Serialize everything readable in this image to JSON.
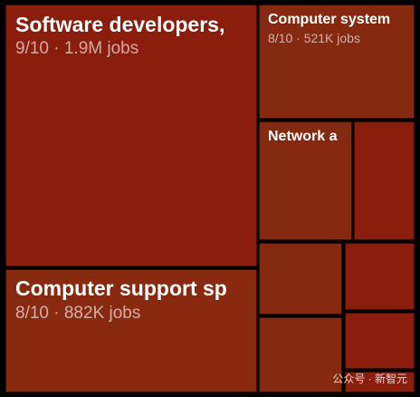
{
  "tiles": [
    {
      "label": "Software developers,",
      "detail": "9/10 · 1.9M jobs"
    },
    {
      "label": "Computer support sp",
      "detail": "8/10 · 882K jobs"
    },
    {
      "label": "Computer system",
      "detail": "8/10 · 521K jobs"
    },
    {
      "label": "Network a"
    }
  ],
  "watermark": "公众号 · 新智元"
}
